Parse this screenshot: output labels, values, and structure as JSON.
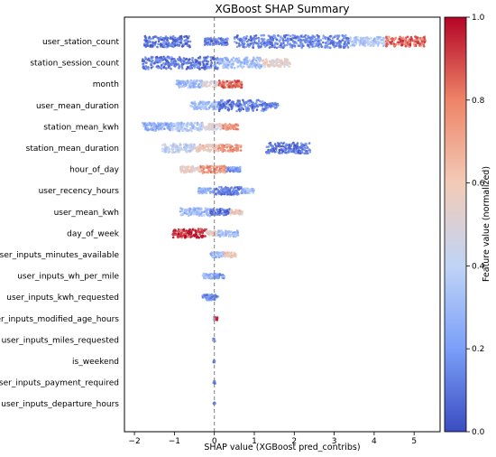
{
  "chart_data": {
    "type": "scatter",
    "title": "XGBoost SHAP Summary",
    "xlabel": "SHAP value (XGBoost pred_contribs)",
    "xlim": [
      -2.25,
      5.65
    ],
    "x_ticks": [
      -2,
      -1,
      0,
      1,
      2,
      3,
      4,
      5
    ],
    "zero_line": 0,
    "colorbar": {
      "label": "Feature value (normalized)",
      "range": [
        0.0,
        1.0
      ],
      "ticks": [
        "0.0",
        "0.2",
        "0.4",
        "0.6",
        "0.8",
        "1.0"
      ],
      "colormap": "coolwarm",
      "colors": [
        "#3b4cc0",
        "#7b9ff9",
        "#c0d4f5",
        "#f2cbb7",
        "#ee8468",
        "#b40426"
      ]
    },
    "features": [
      {
        "name": "user_station_count",
        "segments": [
          [
            -1.75,
            -0.6,
            0.08
          ],
          [
            -0.25,
            0.35,
            0.1
          ],
          [
            0.5,
            3.4,
            0.12
          ],
          [
            3.4,
            4.3,
            0.35
          ],
          [
            4.3,
            5.3,
            0.85
          ]
        ]
      },
      {
        "name": "station_session_count",
        "segments": [
          [
            -1.8,
            0.1,
            0.1
          ],
          [
            0.1,
            1.2,
            0.3
          ],
          [
            1.2,
            1.9,
            0.55
          ]
        ]
      },
      {
        "name": "month",
        "segments": [
          [
            -0.95,
            -0.3,
            0.3
          ],
          [
            -0.3,
            0.1,
            0.5
          ],
          [
            0.1,
            0.7,
            0.85
          ]
        ]
      },
      {
        "name": "user_mean_duration",
        "segments": [
          [
            -0.6,
            0.1,
            0.3
          ],
          [
            0.1,
            1.3,
            0.1
          ],
          [
            1.3,
            1.6,
            0.15
          ]
        ]
      },
      {
        "name": "station_mean_kwh",
        "segments": [
          [
            -1.8,
            -1.1,
            0.25
          ],
          [
            -1.1,
            -0.3,
            0.35
          ],
          [
            -0.3,
            0.2,
            0.5
          ],
          [
            0.2,
            0.6,
            0.75
          ]
        ]
      },
      {
        "name": "station_mean_duration",
        "segments": [
          [
            -1.3,
            -0.5,
            0.4
          ],
          [
            -0.5,
            0.1,
            0.6
          ],
          [
            0.1,
            0.7,
            0.75
          ],
          [
            1.3,
            2.4,
            0.1
          ]
        ]
      },
      {
        "name": "hour_of_day",
        "segments": [
          [
            -0.85,
            -0.35,
            0.55
          ],
          [
            -0.35,
            0.3,
            0.75
          ],
          [
            0.3,
            0.65,
            0.2
          ]
        ]
      },
      {
        "name": "user_recency_hours",
        "segments": [
          [
            -0.4,
            0.0,
            0.25
          ],
          [
            0.0,
            0.7,
            0.1
          ],
          [
            0.7,
            1.0,
            0.3
          ]
        ]
      },
      {
        "name": "user_mean_kwh",
        "segments": [
          [
            -0.85,
            -0.1,
            0.3
          ],
          [
            -0.1,
            0.4,
            0.1
          ],
          [
            0.4,
            0.7,
            0.6
          ]
        ]
      },
      {
        "name": "day_of_week",
        "segments": [
          [
            -1.05,
            -0.2,
            0.95
          ],
          [
            -0.2,
            0.1,
            0.55
          ],
          [
            0.1,
            0.6,
            0.3
          ]
        ]
      },
      {
        "name": "user_inputs_minutes_available",
        "segments": [
          [
            -0.1,
            0.25,
            0.3
          ],
          [
            0.25,
            0.55,
            0.6
          ]
        ]
      },
      {
        "name": "user_inputs_wh_per_mile",
        "segments": [
          [
            -0.3,
            0.0,
            0.3
          ],
          [
            0.0,
            0.25,
            0.2
          ]
        ]
      },
      {
        "name": "user_inputs_kwh_requested",
        "segments": [
          [
            -0.3,
            0.1,
            0.15
          ]
        ]
      },
      {
        "name": "user_inputs_modified_age_hours",
        "segments": [
          [
            -0.02,
            0.02,
            0.25
          ],
          [
            0.02,
            0.08,
            0.95
          ]
        ]
      },
      {
        "name": "user_inputs_miles_requested",
        "segments": [
          [
            -0.03,
            0.02,
            0.15
          ]
        ]
      },
      {
        "name": "is_weekend",
        "segments": [
          [
            -0.02,
            0.02,
            0.15
          ]
        ]
      },
      {
        "name": "user_inputs_payment_required",
        "segments": [
          [
            -0.02,
            0.02,
            0.15
          ]
        ]
      },
      {
        "name": "user_inputs_departure_hours",
        "segments": [
          [
            -0.02,
            0.02,
            0.15
          ]
        ]
      }
    ]
  }
}
